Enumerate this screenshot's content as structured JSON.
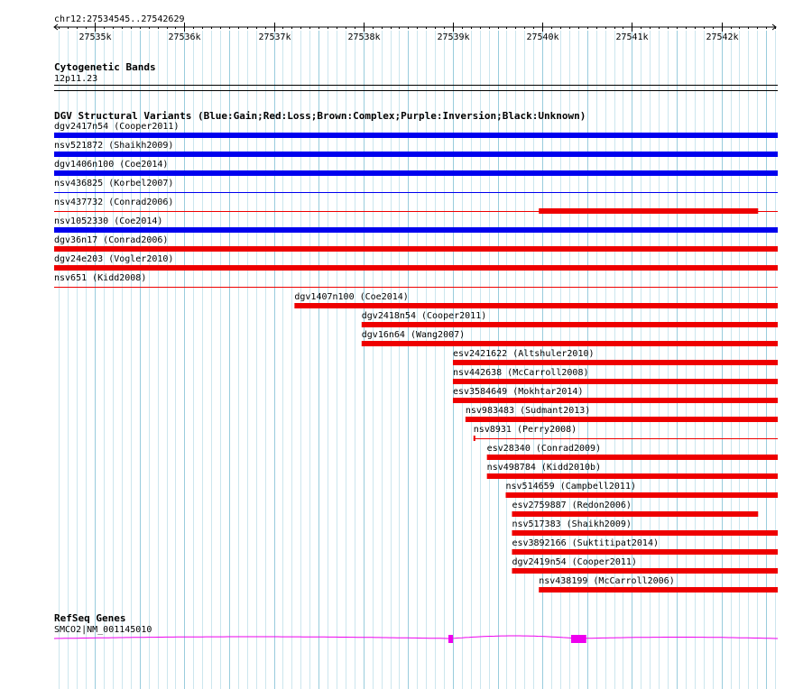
{
  "region_label": "chr12:27534545..27542629",
  "region": {
    "start": 27534545,
    "end": 27542629
  },
  "ruler": {
    "ticks": [
      {
        "pos": 27535000,
        "label": "27535k"
      },
      {
        "pos": 27536000,
        "label": "27536k"
      },
      {
        "pos": 27537000,
        "label": "27537k"
      },
      {
        "pos": 27538000,
        "label": "27538k"
      },
      {
        "pos": 27539000,
        "label": "27539k"
      },
      {
        "pos": 27540000,
        "label": "27540k"
      },
      {
        "pos": 27541000,
        "label": "27541k"
      },
      {
        "pos": 27542000,
        "label": "27542k"
      }
    ]
  },
  "colors": {
    "gain": "#0000ee",
    "loss": "#ee0000",
    "grid_major": "#99ccdd",
    "grid_minor": "#cce6ee",
    "gene": "#ee00ee"
  },
  "tracks": {
    "cytoband": {
      "title": "Cytogenetic Bands",
      "band": "12p11.23"
    },
    "dgv": {
      "title": "DGV Structural Variants (Blue:Gain;Red:Loss;Brown:Complex;Purple:Inversion;Black:Unknown)",
      "features": [
        {
          "label": "dgv2417n54 (Cooper2011)",
          "type": "gain",
          "start": 27534545,
          "end": 27542629,
          "thick": true
        },
        {
          "label": "nsv521872 (Shaikh2009)",
          "type": "gain",
          "start": 27534545,
          "end": 27542629,
          "thick": true
        },
        {
          "label": "dgv1406n100 (Coe2014)",
          "type": "gain",
          "start": 27534545,
          "end": 27542629,
          "thick": true
        },
        {
          "label": "nsv436825 (Korbel2007)",
          "type": "gain",
          "start": 27534545,
          "end": 27542629,
          "thick": false
        },
        {
          "label": "nsv437732 (Conrad2006)",
          "type": "loss",
          "start": 27534545,
          "end": 27542629,
          "thick": false,
          "thick_start": 27539960,
          "thick_end": 27542410
        },
        {
          "label": "nsv1052330 (Coe2014)",
          "type": "gain",
          "start": 27534545,
          "end": 27542629,
          "thick": true
        },
        {
          "label": "dgv36n17 (Conrad2006)",
          "type": "loss",
          "start": 27534545,
          "end": 27542629,
          "thick": true
        },
        {
          "label": "dgv24e203 (Vogler2010)",
          "type": "loss",
          "start": 27534545,
          "end": 27542629,
          "thick": true
        },
        {
          "label": "nsv651 (Kidd2008)",
          "type": "loss",
          "start": 27534545,
          "end": 27542629,
          "thick": false
        },
        {
          "label": "dgv1407n100 (Coe2014)",
          "type": "loss",
          "start": 27537230,
          "end": 27542629,
          "thick": true
        },
        {
          "label": "dgv2418n54 (Cooper2011)",
          "type": "loss",
          "start": 27537980,
          "end": 27542629,
          "thick": true
        },
        {
          "label": "dgv16n64 (Wang2007)",
          "type": "loss",
          "start": 27537980,
          "end": 27542629,
          "thick": true
        },
        {
          "label": "esv2421622 (Altshuler2010)",
          "type": "loss",
          "start": 27539000,
          "end": 27542629,
          "thick": true
        },
        {
          "label": "nsv442638 (McCarroll2008)",
          "type": "loss",
          "start": 27539000,
          "end": 27542629,
          "thick": true
        },
        {
          "label": "esv3584649 (Mokhtar2014)",
          "type": "loss",
          "start": 27539000,
          "end": 27542629,
          "thick": true
        },
        {
          "label": "nsv983483 (Sudmant2013)",
          "type": "loss",
          "start": 27539140,
          "end": 27542629,
          "thick": true
        },
        {
          "label": "nsv8931 (Perry2008)",
          "type": "loss",
          "start": 27539230,
          "end": 27542629,
          "thick": false,
          "thick_start": 27539230,
          "thick_end": 27539250
        },
        {
          "label": "esv28340 (Conrad2009)",
          "type": "loss",
          "start": 27539380,
          "end": 27542629,
          "thick": true
        },
        {
          "label": "nsv498784 (Kidd2010b)",
          "type": "loss",
          "start": 27539380,
          "end": 27542629,
          "thick": true
        },
        {
          "label": "nsv514659 (Campbell2011)",
          "type": "loss",
          "start": 27539590,
          "end": 27542629,
          "thick": true
        },
        {
          "label": "esv2759887 (Redon2006)",
          "type": "loss",
          "start": 27539660,
          "end": 27542410,
          "thick": true
        },
        {
          "label": "nsv517383 (Shaikh2009)",
          "type": "loss",
          "start": 27539660,
          "end": 27542629,
          "thick": true
        },
        {
          "label": "esv3892166 (Suktitipat2014)",
          "type": "loss",
          "start": 27539660,
          "end": 27542629,
          "thick": true
        },
        {
          "label": "dgv2419n54 (Cooper2011)",
          "type": "loss",
          "start": 27539660,
          "end": 27542629,
          "thick": true
        },
        {
          "label": "nsv438199 (McCarroll2006)",
          "type": "loss",
          "start": 27539960,
          "end": 27542629,
          "thick": true
        }
      ]
    },
    "refseq": {
      "title": "RefSeq Genes",
      "gene": {
        "label": "SMCO2|NM_001145010",
        "start": 27534545,
        "end": 27542629,
        "exons": [
          {
            "start": 27538950,
            "end": 27538990
          },
          {
            "start": 27540320,
            "end": 27540490
          }
        ]
      }
    }
  }
}
